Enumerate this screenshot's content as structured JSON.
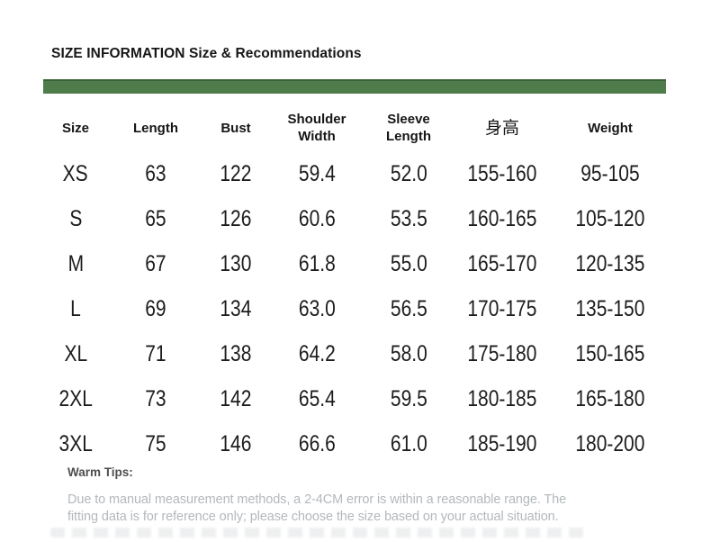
{
  "page": {
    "title": "SIZE INFORMATION Size & Recommendations"
  },
  "colors": {
    "accent_green": "#4e7c4a",
    "accent_green_dark": "#3b6339",
    "text_dark": "#1c1c1c",
    "tips_label_gray": "#4d4d4d",
    "tips_text_gray": "#b4b8bc"
  },
  "size_table": {
    "headers": [
      "Size",
      "Length",
      "Bust",
      "Shoulder Width",
      "Sleeve Length",
      "身高",
      "Weight"
    ],
    "rows": [
      [
        "XS",
        "63",
        "122",
        "59.4",
        "52.0",
        "155-160",
        "95-105"
      ],
      [
        "S",
        "65",
        "126",
        "60.6",
        "53.5",
        "160-165",
        "105-120"
      ],
      [
        "M",
        "67",
        "130",
        "61.8",
        "55.0",
        "165-170",
        "120-135"
      ],
      [
        "L",
        "69",
        "134",
        "63.0",
        "56.5",
        "170-175",
        "135-150"
      ],
      [
        "XL",
        "71",
        "138",
        "64.2",
        "58.0",
        "175-180",
        "150-165"
      ],
      [
        "2XL",
        "73",
        "142",
        "65.4",
        "59.5",
        "180-185",
        "165-180"
      ],
      [
        "3XL",
        "75",
        "146",
        "66.6",
        "61.0",
        "185-190",
        "180-200"
      ]
    ]
  },
  "warm_tips": {
    "label": "Warm Tips:",
    "line1": "Due to manual measurement methods, a 2-4CM error is within a reasonable range. The",
    "line2": "fitting data is for reference only; please choose the size based on your actual situation."
  }
}
